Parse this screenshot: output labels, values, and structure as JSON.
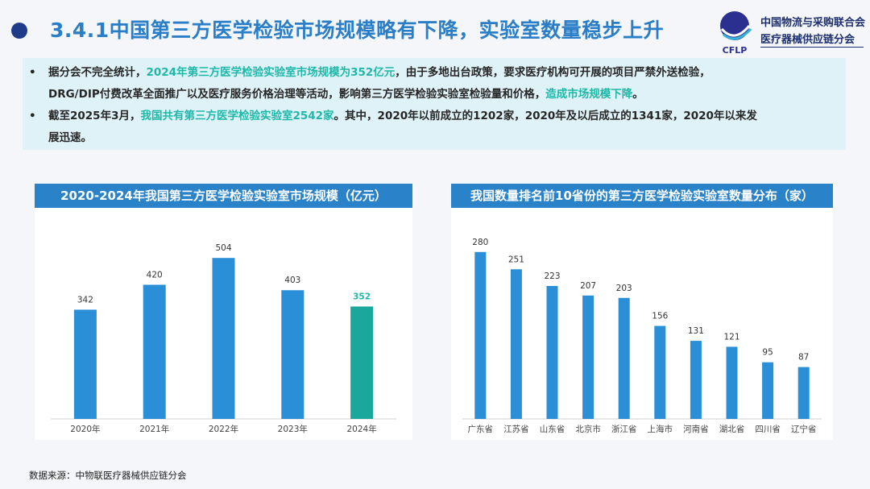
{
  "title": "3.4.1中国第三方医学检验市场规模略有下降，实验室数量稳步上升",
  "logo": {
    "mark_text": "CFLP",
    "org_line1": "中国物流与采购联合会",
    "org_line2": "医疗器械供应链分会"
  },
  "summary": [
    {
      "bullet": "•",
      "parts": [
        {
          "text": "据分会不完全统计，",
          "hl": false
        },
        {
          "text": "2024年第三方医学检验实验室市场规模为352亿元",
          "hl": true
        },
        {
          "text": "，由于多地出台政策，要求医疗机构可开展的项目严禁外送检验，",
          "hl": false
        }
      ]
    },
    {
      "bullet": "",
      "parts": [
        {
          "text": "DRG/DIP付费改革全面推广以及医疗服务价格治理等活动，影响第三方医学检验实验室检验量和价格，",
          "hl": false
        },
        {
          "text": "造成市场规模下降",
          "hl": true
        },
        {
          "text": "。",
          "hl": false
        }
      ]
    },
    {
      "bullet": "•",
      "parts": [
        {
          "text": "截至2025年3月，",
          "hl": false
        },
        {
          "text": "我国共有第三方医学检验实验室2542家",
          "hl": true
        },
        {
          "text": "。其中，2020年以前成立的1202家，2020年及以后成立的1341家，2020年以来发",
          "hl": false
        }
      ]
    },
    {
      "bullet": "",
      "parts": [
        {
          "text": "展迅速。",
          "hl": false
        }
      ]
    }
  ],
  "chart_data": [
    {
      "type": "bar",
      "title": "2020-2024年我国第三方医学检验实验室市场规模（亿元）",
      "categories": [
        "2020年",
        "2021年",
        "2022年",
        "2023年",
        "2024年"
      ],
      "values": [
        342,
        420,
        504,
        403,
        352
      ],
      "ylim": [
        0,
        560
      ],
      "colors": [
        "#2a8fd6",
        "#2a8fd6",
        "#2a8fd6",
        "#2a8fd6",
        "#1aa89c"
      ],
      "label_colors": [
        "#333333",
        "#333333",
        "#333333",
        "#333333",
        "#1fb8a8"
      ]
    },
    {
      "type": "bar",
      "title": "我国数量排名前10省份的第三方医学检验实验室数量分布（家）",
      "categories": [
        "广东省",
        "江苏省",
        "山东省",
        "北京市",
        "浙江省",
        "上海市",
        "河南省",
        "湖北省",
        "四川省",
        "辽宁省"
      ],
      "values": [
        280,
        251,
        223,
        207,
        203,
        156,
        131,
        121,
        95,
        87
      ],
      "ylim": [
        0,
        300
      ],
      "colors": [
        "#2a8fd6"
      ],
      "label_colors": [
        "#333333"
      ]
    }
  ],
  "source": "数据来源：中物联医疗器械供应链分会"
}
